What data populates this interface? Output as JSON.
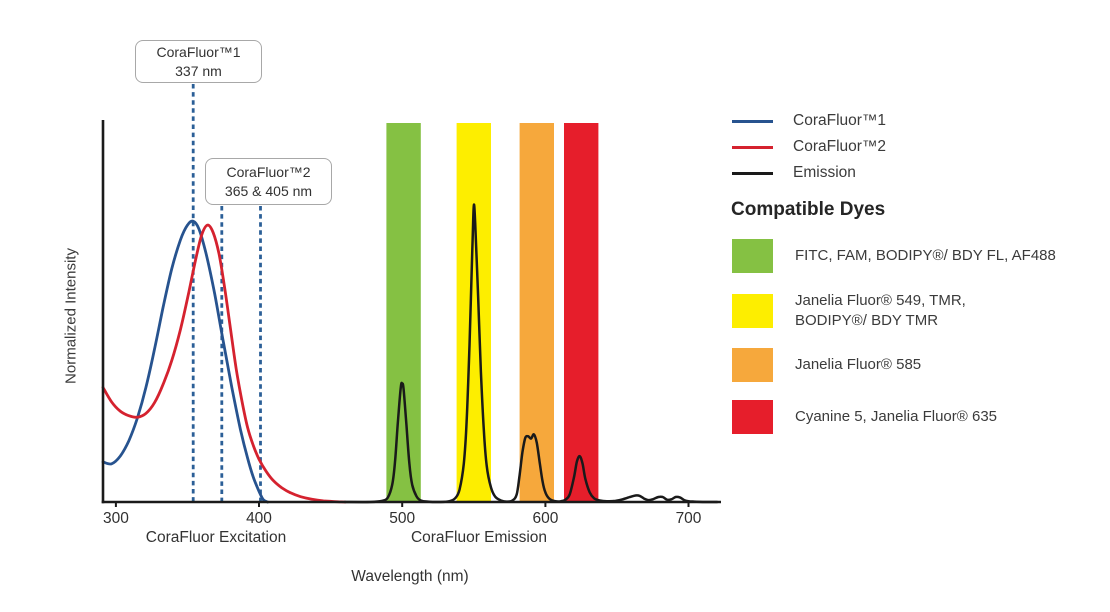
{
  "chart_data": {
    "type": "line",
    "title": "",
    "xlabel": "Wavelength (nm)",
    "ylabel": "Normalized Intensity",
    "xlim_nm": [
      291,
      722
    ],
    "ylim": [
      0,
      1
    ],
    "grid": false,
    "legend_position": "right",
    "x_ticks": [
      300,
      400,
      500,
      600,
      700
    ],
    "x_region_labels": [
      {
        "text": "CoraFluor Excitation"
      },
      {
        "text": "CoraFluor Emission"
      }
    ],
    "annotations": [
      {
        "label": "CoraFluor™1",
        "sublabel": "337 nm",
        "lines_nm": [
          354
        ]
      },
      {
        "label": "CoraFluor™2",
        "sublabel": "365 & 405 nm",
        "lines_nm": [
          374,
          401
        ]
      }
    ],
    "marker_line_color": "#2b5f97",
    "bands": [
      {
        "name": "green-filter",
        "range_nm": [
          489,
          513
        ],
        "color": "#85c143"
      },
      {
        "name": "yellow-filter",
        "range_nm": [
          538,
          562
        ],
        "color": "#fdee00"
      },
      {
        "name": "orange-filter",
        "range_nm": [
          582,
          606
        ],
        "color": "#f6a83c"
      },
      {
        "name": "red-filter",
        "range_nm": [
          613,
          637
        ],
        "color": "#e61e2b"
      }
    ],
    "series": [
      {
        "name": "CoraFluor™1",
        "color": "#27538f",
        "points": [
          [
            291,
            0.105
          ],
          [
            297,
            0.1
          ],
          [
            303,
            0.12
          ],
          [
            309,
            0.16
          ],
          [
            315,
            0.22
          ],
          [
            321,
            0.3
          ],
          [
            327,
            0.4
          ],
          [
            333,
            0.51
          ],
          [
            339,
            0.61
          ],
          [
            345,
            0.685
          ],
          [
            350,
            0.725
          ],
          [
            354,
            0.735
          ],
          [
            358,
            0.715
          ],
          [
            363,
            0.65
          ],
          [
            369,
            0.545
          ],
          [
            375,
            0.42
          ],
          [
            381,
            0.3
          ],
          [
            387,
            0.19
          ],
          [
            392,
            0.115
          ],
          [
            396,
            0.065
          ],
          [
            400,
            0.028
          ],
          [
            403,
            0.006
          ],
          [
            406,
            0
          ]
        ]
      },
      {
        "name": "CoraFluor™2",
        "color": "#d5222f",
        "points": [
          [
            291,
            0.3
          ],
          [
            297,
            0.262
          ],
          [
            303,
            0.238
          ],
          [
            309,
            0.226
          ],
          [
            315,
            0.222
          ],
          [
            321,
            0.232
          ],
          [
            327,
            0.26
          ],
          [
            333,
            0.308
          ],
          [
            339,
            0.37
          ],
          [
            345,
            0.45
          ],
          [
            351,
            0.55
          ],
          [
            356,
            0.64
          ],
          [
            360,
            0.7
          ],
          [
            364,
            0.725
          ],
          [
            368,
            0.705
          ],
          [
            372,
            0.65
          ],
          [
            376,
            0.56
          ],
          [
            380,
            0.455
          ],
          [
            384,
            0.35
          ],
          [
            388,
            0.265
          ],
          [
            392,
            0.195
          ],
          [
            396,
            0.148
          ],
          [
            400,
            0.112
          ],
          [
            405,
            0.08
          ],
          [
            410,
            0.056
          ],
          [
            416,
            0.037
          ],
          [
            422,
            0.024
          ],
          [
            429,
            0.014
          ],
          [
            437,
            0.007
          ],
          [
            445,
            0.003
          ],
          [
            453,
            0.001
          ],
          [
            460,
            0
          ]
        ]
      },
      {
        "name": "Emission",
        "color": "#1a1a1a",
        "points": [
          [
            460,
            0
          ],
          [
            478,
            0
          ],
          [
            486,
            0.003
          ],
          [
            490,
            0.012
          ],
          [
            493,
            0.045
          ],
          [
            495,
            0.105
          ],
          [
            497,
            0.21
          ],
          [
            499,
            0.3
          ],
          [
            500,
            0.31
          ],
          [
            501,
            0.295
          ],
          [
            503,
            0.2
          ],
          [
            505,
            0.1
          ],
          [
            507,
            0.045
          ],
          [
            510,
            0.015
          ],
          [
            513,
            0.004
          ],
          [
            518,
            0.001
          ],
          [
            526,
            0
          ],
          [
            533,
            0.002
          ],
          [
            537,
            0.01
          ],
          [
            540,
            0.032
          ],
          [
            543,
            0.1
          ],
          [
            545,
            0.21
          ],
          [
            547,
            0.41
          ],
          [
            549,
            0.66
          ],
          [
            550,
            0.775
          ],
          [
            551,
            0.73
          ],
          [
            553,
            0.54
          ],
          [
            555,
            0.34
          ],
          [
            557,
            0.19
          ],
          [
            559,
            0.095
          ],
          [
            562,
            0.038
          ],
          [
            565,
            0.014
          ],
          [
            569,
            0.004
          ],
          [
            573,
            0.001
          ],
          [
            577,
            0.004
          ],
          [
            580,
            0.02
          ],
          [
            582,
            0.07
          ],
          [
            584,
            0.13
          ],
          [
            586,
            0.168
          ],
          [
            588,
            0.172
          ],
          [
            590,
            0.166
          ],
          [
            592,
            0.177
          ],
          [
            594,
            0.155
          ],
          [
            596,
            0.105
          ],
          [
            598,
            0.055
          ],
          [
            600,
            0.025
          ],
          [
            603,
            0.008
          ],
          [
            607,
            0.002
          ],
          [
            611,
            0.002
          ],
          [
            614,
            0.006
          ],
          [
            617,
            0.02
          ],
          [
            620,
            0.065
          ],
          [
            622,
            0.105
          ],
          [
            624,
            0.12
          ],
          [
            626,
            0.1
          ],
          [
            628,
            0.06
          ],
          [
            631,
            0.025
          ],
          [
            634,
            0.01
          ],
          [
            638,
            0.004
          ],
          [
            643,
            0.002
          ],
          [
            649,
            0.003
          ],
          [
            654,
            0.007
          ],
          [
            659,
            0.013
          ],
          [
            663,
            0.017
          ],
          [
            666,
            0.016
          ],
          [
            669,
            0.009
          ],
          [
            672,
            0.005
          ],
          [
            675,
            0.007
          ],
          [
            679,
            0.013
          ],
          [
            682,
            0.013
          ],
          [
            685,
            0.006
          ],
          [
            688,
            0.007
          ],
          [
            691,
            0.013
          ],
          [
            694,
            0.012
          ],
          [
            697,
            0.005
          ],
          [
            700,
            0.002
          ],
          [
            704,
            0.001
          ],
          [
            710,
            0
          ],
          [
            720,
            0
          ]
        ]
      }
    ]
  },
  "legend": {
    "series": [
      {
        "label": "CoraFluor™1",
        "color": "#27538f"
      },
      {
        "label": "CoraFluor™2",
        "color": "#d5222f"
      },
      {
        "label": "Emission",
        "color": "#1a1a1a"
      }
    ],
    "dyes_heading": "Compatible Dyes",
    "dyes": [
      {
        "color": "#85c143",
        "label": "FITC, FAM, BODIPY®/ BDY FL, AF488"
      },
      {
        "color": "#fdee00",
        "label": "Janelia Fluor® 549, TMR,\nBODIPY®/ BDY TMR"
      },
      {
        "color": "#f6a83c",
        "label": "Janelia Fluor® 585"
      },
      {
        "color": "#e61e2b",
        "label": "Cyanine 5, Janelia Fluor® 635"
      }
    ]
  }
}
